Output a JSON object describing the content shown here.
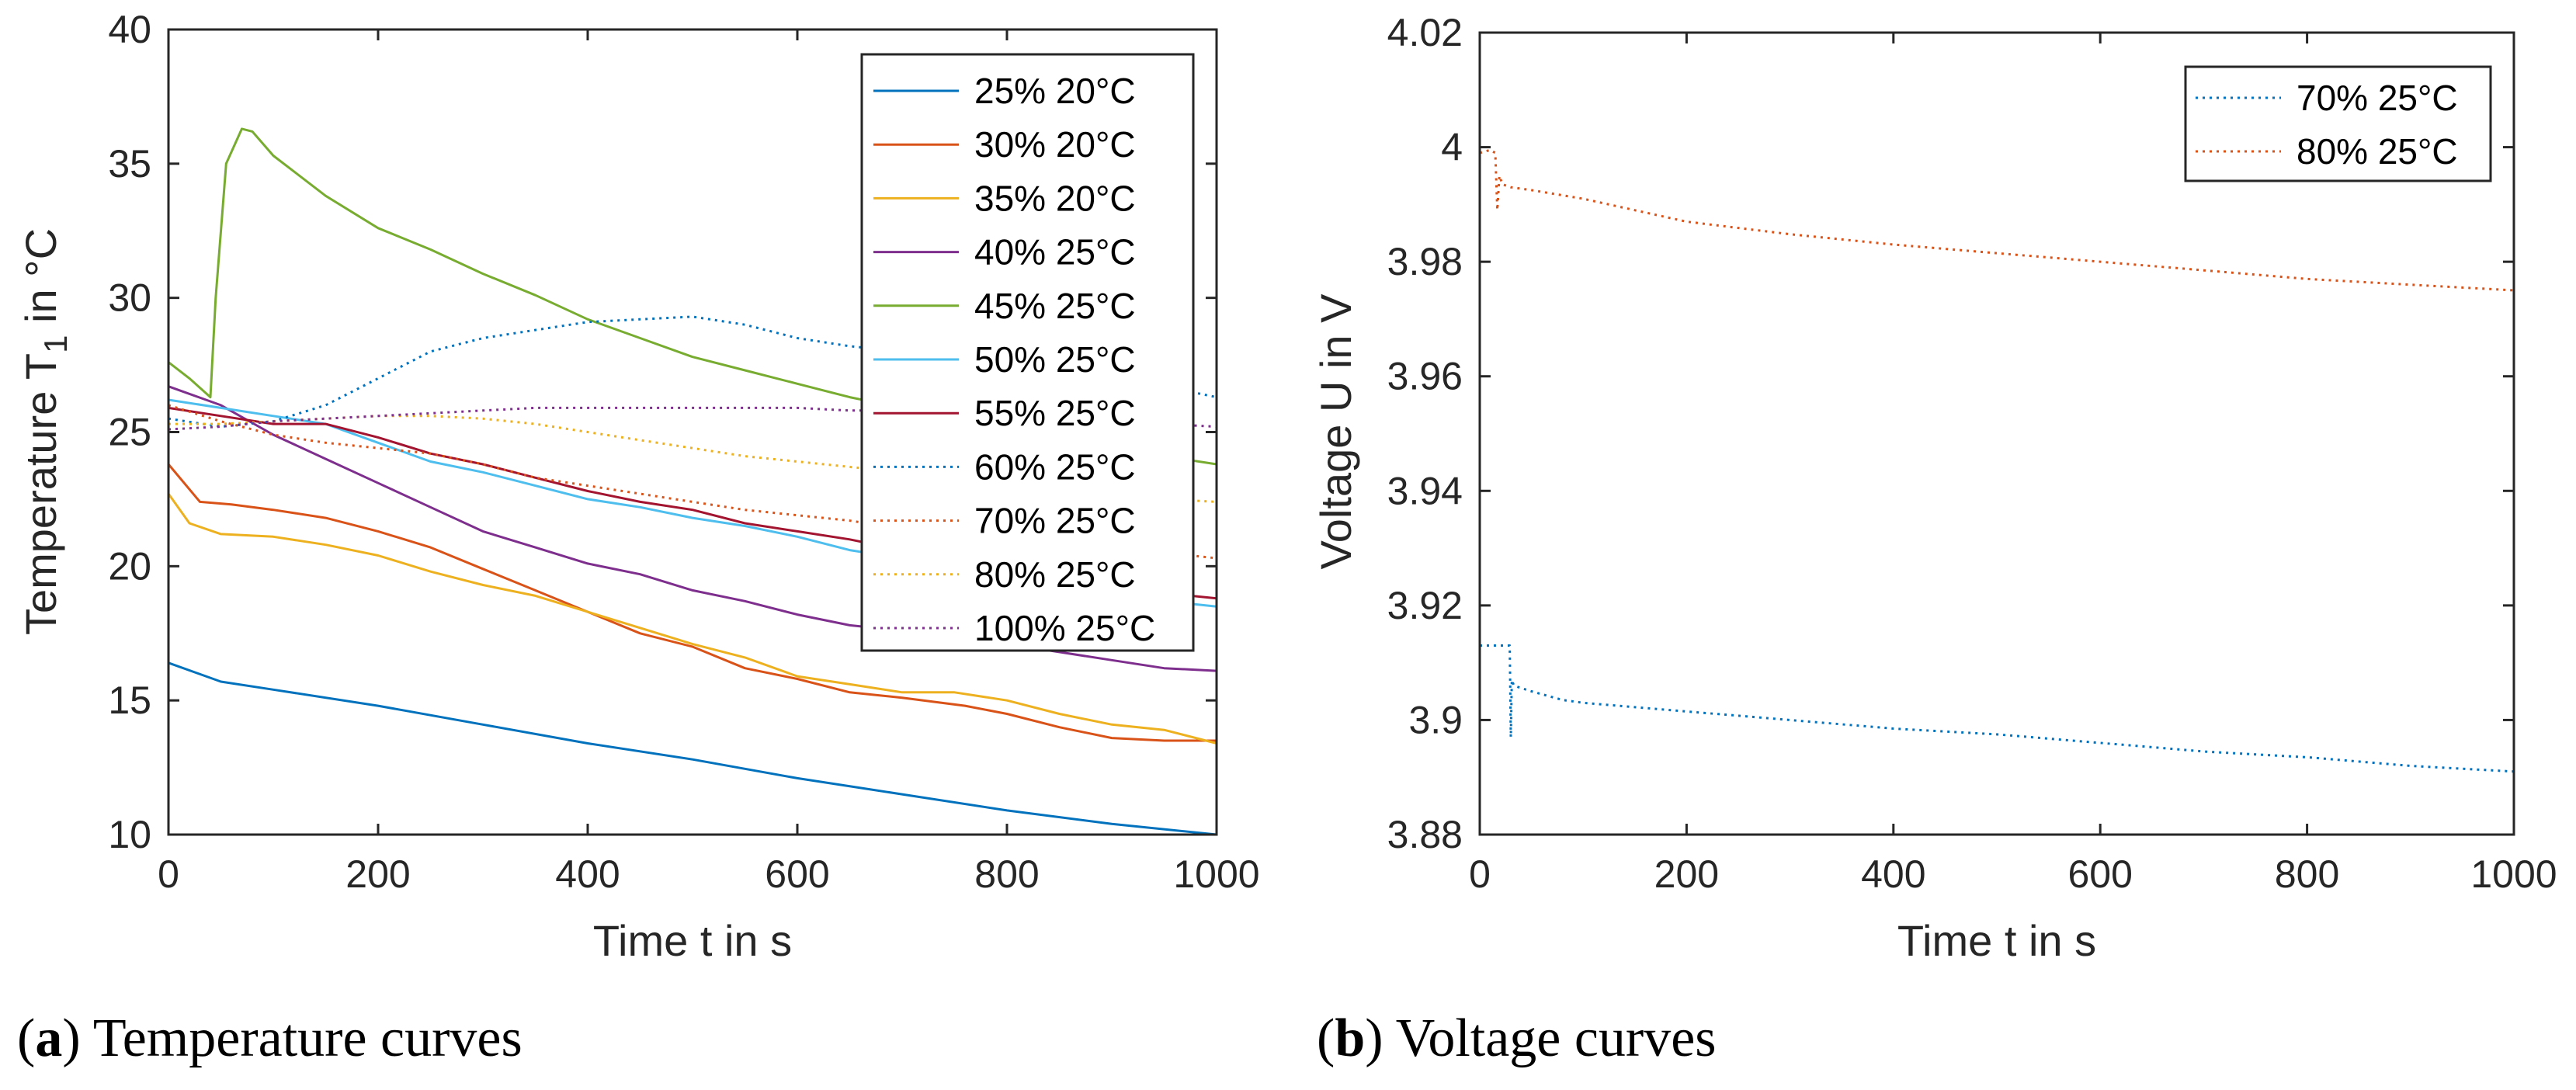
{
  "chart_data": [
    {
      "type": "line",
      "panel": "a",
      "caption_letter": "a",
      "caption_text": "Temperature curves",
      "xlabel": "Time t in s",
      "ylabel_main": "Temperature T",
      "ylabel_sub": "1",
      "ylabel_tail": " in °C",
      "xlim": [
        0,
        1000
      ],
      "ylim": [
        10,
        40
      ],
      "xticks": [
        "0",
        "200",
        "400",
        "600",
        "800",
        "1000"
      ],
      "yticks": [
        "10",
        "15",
        "20",
        "25",
        "30",
        "35",
        "40"
      ],
      "legend_position": "top-right",
      "series": [
        {
          "name": "25% 20°C",
          "color": "#0072BD",
          "style": "solid",
          "x": [
            0,
            50,
            100,
            200,
            300,
            400,
            500,
            600,
            700,
            800,
            900,
            1000
          ],
          "y": [
            16.4,
            15.7,
            15.4,
            14.8,
            14.1,
            13.4,
            12.8,
            12.1,
            11.5,
            10.9,
            10.4,
            10.0
          ]
        },
        {
          "name": "30% 20°C",
          "color": "#D95319",
          "style": "solid",
          "x": [
            0,
            30,
            60,
            100,
            150,
            200,
            250,
            300,
            350,
            400,
            450,
            500,
            550,
            600,
            650,
            700,
            760,
            800,
            850,
            900,
            950,
            1000
          ],
          "y": [
            23.8,
            22.4,
            22.3,
            22.1,
            21.8,
            21.3,
            20.7,
            19.9,
            19.1,
            18.3,
            17.5,
            17.0,
            16.2,
            15.8,
            15.3,
            15.1,
            14.8,
            14.5,
            14.0,
            13.6,
            13.5,
            13.5
          ]
        },
        {
          "name": "35% 20°C",
          "color": "#EDB120",
          "style": "solid",
          "x": [
            0,
            20,
            50,
            100,
            150,
            200,
            250,
            300,
            350,
            400,
            450,
            500,
            550,
            600,
            650,
            700,
            750,
            800,
            850,
            900,
            950,
            1000
          ],
          "y": [
            22.7,
            21.6,
            21.2,
            21.1,
            20.8,
            20.4,
            19.8,
            19.3,
            18.9,
            18.3,
            17.7,
            17.1,
            16.6,
            15.9,
            15.6,
            15.3,
            15.3,
            15.0,
            14.5,
            14.1,
            13.9,
            13.4
          ]
        },
        {
          "name": "40% 25°C",
          "color": "#7E2F8E",
          "style": "solid",
          "x": [
            0,
            50,
            100,
            150,
            200,
            250,
            300,
            350,
            400,
            450,
            500,
            550,
            600,
            650,
            700,
            750,
            800,
            850,
            900,
            950,
            1000
          ],
          "y": [
            26.7,
            26.0,
            24.9,
            24.0,
            23.1,
            22.2,
            21.3,
            20.7,
            20.1,
            19.7,
            19.1,
            18.7,
            18.2,
            17.8,
            17.6,
            17.4,
            17.1,
            16.8,
            16.5,
            16.2,
            16.1
          ]
        },
        {
          "name": "45% 25°C",
          "color": "#77AC30",
          "style": "solid",
          "x": [
            0,
            20,
            40,
            45,
            55,
            70,
            80,
            100,
            150,
            200,
            250,
            300,
            350,
            400,
            450,
            500,
            550,
            600,
            650,
            700,
            750,
            800,
            850,
            900,
            950,
            1000
          ],
          "y": [
            27.6,
            27.0,
            26.3,
            30.0,
            35.0,
            36.3,
            36.2,
            35.3,
            33.8,
            32.6,
            31.8,
            30.9,
            30.1,
            29.2,
            28.5,
            27.8,
            27.3,
            26.8,
            26.3,
            25.9,
            25.4,
            25.1,
            24.8,
            24.4,
            24.1,
            23.8
          ]
        },
        {
          "name": "50% 25°C",
          "color": "#4DBEEE",
          "style": "solid",
          "x": [
            0,
            50,
            100,
            150,
            200,
            250,
            300,
            350,
            400,
            450,
            500,
            550,
            600,
            650,
            700,
            750,
            800,
            850,
            900,
            950,
            1000
          ],
          "y": [
            26.2,
            25.9,
            25.6,
            25.3,
            24.6,
            23.9,
            23.5,
            23.0,
            22.5,
            22.2,
            21.8,
            21.5,
            21.1,
            20.6,
            20.3,
            19.9,
            19.7,
            19.4,
            19.1,
            18.7,
            18.5
          ]
        },
        {
          "name": "55% 25°C",
          "color": "#A2142F",
          "style": "solid",
          "x": [
            0,
            50,
            100,
            150,
            200,
            250,
            300,
            350,
            400,
            450,
            500,
            550,
            600,
            650,
            700,
            750,
            800,
            850,
            900,
            950,
            1000
          ],
          "y": [
            25.9,
            25.6,
            25.3,
            25.3,
            24.8,
            24.2,
            23.8,
            23.3,
            22.8,
            22.4,
            22.1,
            21.6,
            21.3,
            21.0,
            20.6,
            20.3,
            19.9,
            19.6,
            19.3,
            19.0,
            18.8
          ]
        },
        {
          "name": "60% 25°C",
          "color": "#0072BD",
          "style": "dotted",
          "x": [
            0,
            50,
            100,
            150,
            200,
            250,
            300,
            350,
            400,
            450,
            500,
            550,
            600,
            650,
            700,
            750,
            800,
            850,
            900,
            950,
            1000
          ],
          "y": [
            25.5,
            25.2,
            25.4,
            26.0,
            27.0,
            28.0,
            28.5,
            28.8,
            29.1,
            29.2,
            29.3,
            29.0,
            28.5,
            28.2,
            28.0,
            27.8,
            27.5,
            27.3,
            27.0,
            26.7,
            26.3
          ]
        },
        {
          "name": "70% 25°C",
          "color": "#D95319",
          "style": "dotted",
          "x": [
            0,
            50,
            100,
            150,
            200,
            250,
            300,
            350,
            400,
            450,
            500,
            550,
            600,
            650,
            700,
            750,
            800,
            850,
            900,
            950,
            1000
          ],
          "y": [
            26.0,
            25.4,
            24.9,
            24.6,
            24.4,
            24.2,
            23.8,
            23.3,
            23.0,
            22.7,
            22.4,
            22.1,
            21.9,
            21.7,
            21.4,
            21.2,
            21.0,
            20.9,
            20.7,
            20.5,
            20.3
          ]
        },
        {
          "name": "80% 25°C",
          "color": "#EDB120",
          "style": "dotted",
          "x": [
            0,
            50,
            100,
            150,
            200,
            250,
            300,
            350,
            400,
            450,
            500,
            550,
            600,
            650,
            700,
            750,
            800,
            850,
            900,
            950,
            1000
          ],
          "y": [
            25.3,
            25.3,
            25.4,
            25.5,
            25.6,
            25.6,
            25.5,
            25.3,
            25.0,
            24.7,
            24.4,
            24.1,
            23.9,
            23.7,
            23.5,
            23.3,
            23.1,
            22.9,
            22.7,
            22.5,
            22.4
          ]
        },
        {
          "name": "100% 25°C",
          "color": "#7E2F8E",
          "style": "dotted",
          "x": [
            0,
            50,
            100,
            150,
            200,
            250,
            300,
            350,
            400,
            450,
            500,
            550,
            600,
            650,
            700,
            750,
            800,
            850,
            900,
            950,
            1000
          ],
          "y": [
            25.1,
            25.2,
            25.4,
            25.5,
            25.6,
            25.7,
            25.8,
            25.9,
            25.9,
            25.9,
            25.9,
            25.9,
            25.9,
            25.8,
            25.8,
            25.7,
            25.6,
            25.5,
            25.4,
            25.3,
            25.2
          ]
        }
      ]
    },
    {
      "type": "line",
      "panel": "b",
      "caption_letter": "b",
      "caption_text": "Voltage curves",
      "xlabel": "Time t in s",
      "ylabel": "Voltage U in V",
      "xlim": [
        0,
        1000
      ],
      "ylim": [
        3.88,
        4.02
      ],
      "xticks": [
        "0",
        "200",
        "400",
        "600",
        "800",
        "1000"
      ],
      "yticks": [
        "3.88",
        "3.9",
        "3.92",
        "3.94",
        "3.96",
        "3.98",
        "4",
        "4.02"
      ],
      "legend_position": "top-right",
      "series": [
        {
          "name": "70% 25°C",
          "color": "#0072BD",
          "style": "dotted",
          "x": [
            0,
            28,
            29,
            30,
            31,
            33,
            50,
            80,
            100,
            200,
            300,
            400,
            500,
            600,
            700,
            800,
            900,
            1000
          ],
          "y": [
            3.913,
            3.913,
            3.913,
            3.897,
            3.907,
            3.906,
            3.905,
            3.9035,
            3.903,
            3.9015,
            3.9,
            3.8985,
            3.8975,
            3.896,
            3.8945,
            3.8935,
            3.892,
            3.891
          ]
        },
        {
          "name": "80% 25°C",
          "color": "#D95319",
          "style": "dotted",
          "x": [
            0,
            10,
            15,
            17,
            19,
            22,
            30,
            50,
            100,
            200,
            300,
            400,
            500,
            600,
            700,
            800,
            900,
            1000
          ],
          "y": [
            3.999,
            3.9995,
            3.999,
            3.989,
            3.995,
            3.9935,
            3.993,
            3.9925,
            3.991,
            3.987,
            3.9848,
            3.983,
            3.9815,
            3.98,
            3.9785,
            3.977,
            3.976,
            3.975
          ]
        }
      ]
    }
  ]
}
